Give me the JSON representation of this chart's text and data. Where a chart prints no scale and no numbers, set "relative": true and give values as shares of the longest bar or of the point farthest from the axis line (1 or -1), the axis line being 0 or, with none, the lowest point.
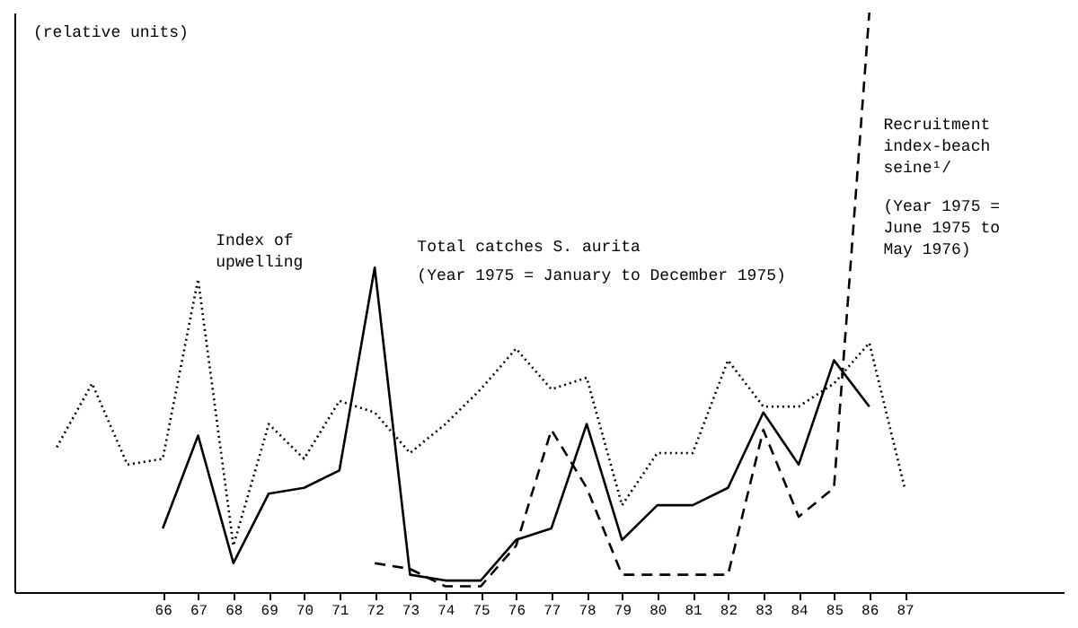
{
  "chart_data": {
    "type": "line",
    "relative": true,
    "ylabel": "(relative units)",
    "marker": "none",
    "categories": [
      null,
      null,
      null,
      "66",
      "67",
      "68",
      "69",
      "70",
      "71",
      "72",
      "73",
      "74",
      "75",
      "76",
      "77",
      "78",
      "79",
      "80",
      "81",
      "82",
      "83",
      "84",
      "85",
      "86",
      "87"
    ],
    "series": [
      {
        "name": "Index of upwelling",
        "color": "#000000",
        "line_style": "dotted",
        "values": [
          0.25,
          0.36,
          0.22,
          0.23,
          0.54,
          0.08,
          0.29,
          0.23,
          0.33,
          0.31,
          0.24,
          0.29,
          0.35,
          0.42,
          0.35,
          0.37,
          0.15,
          0.24,
          0.24,
          0.4,
          0.32,
          0.32,
          0.36,
          0.43,
          0.18
        ]
      },
      {
        "name": "Total catches S. aurita",
        "color": "#000000",
        "line_style": "solid",
        "values": [
          null,
          null,
          null,
          0.11,
          0.27,
          0.05,
          0.17,
          0.18,
          0.21,
          0.56,
          0.03,
          0.02,
          0.02,
          0.09,
          0.11,
          0.29,
          0.09,
          0.15,
          0.15,
          0.18,
          0.31,
          0.22,
          0.4,
          0.32,
          null
        ]
      },
      {
        "name": "Recruitment index-beach seine¹/",
        "color": "#000000",
        "line_style": "dashed",
        "values": [
          null,
          null,
          null,
          null,
          null,
          null,
          null,
          null,
          null,
          0.05,
          0.04,
          0.01,
          0.01,
          0.08,
          0.28,
          0.18,
          0.03,
          0.03,
          0.03,
          0.03,
          0.28,
          0.13,
          0.18,
          1.0,
          null
        ]
      }
    ],
    "annotations": [
      "(Year 1975 = January to December 1975)",
      "(Year 1975 = June 1975 to May 1976)"
    ]
  }
}
